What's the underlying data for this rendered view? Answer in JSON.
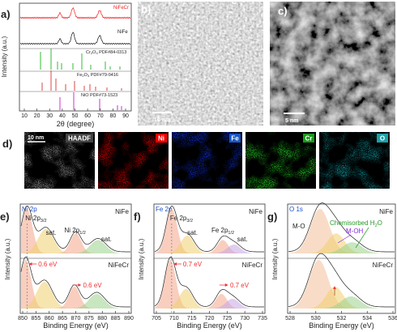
{
  "panels": {
    "a": {
      "label": "a)",
      "xlabel": "2θ (degree)",
      "ylabel": "Intensity (a.u.)",
      "xticks": [
        10,
        20,
        30,
        40,
        50,
        60,
        70,
        80,
        90
      ],
      "legend": [
        {
          "main": "NiFeCr"
        },
        {
          "main": "NiFe"
        },
        {
          "main": "Cr",
          "sub1": "2",
          "mid": "O",
          "sub2": "3",
          "rest": " PDF#84-0313"
        },
        {
          "main": "Fe",
          "sub1": "2",
          "mid": "O",
          "sub2": "3",
          "rest": " PDF#79-0416"
        },
        {
          "main": "NiO PDF#73-1523"
        }
      ]
    },
    "b": {
      "label": "b)",
      "scale": "10 nm"
    },
    "c": {
      "label": "c)",
      "scale": "5 nm"
    },
    "d": {
      "label": "d)",
      "scale": "10 nm",
      "maps": [
        "HAADF",
        "Ni",
        "Fe",
        "Cr",
        "O"
      ]
    },
    "e": {
      "label": "e)",
      "xlabel": "Binding Energy (eV)",
      "ylabel": "Intensity (a.u.)",
      "xticks": [
        850,
        855,
        860,
        865,
        870,
        875,
        880,
        885,
        890
      ],
      "title": "Ni 2p",
      "top": "NiFe",
      "bottom": "NiFeCr",
      "peak1": {
        "main": "Ni 2p",
        "sub": "3/2"
      },
      "peak2": {
        "main": "Ni 2p",
        "sub": "1/2"
      },
      "sat1": "sat.",
      "sat2": "sat.",
      "shift1": "0.6 eV",
      "shift2": "0.6 eV"
    },
    "f": {
      "label": "f)",
      "xlabel": "Binding Energy (eV)",
      "ylabel": "Intensity (a.u.)",
      "xticks": [
        705,
        710,
        715,
        720,
        725,
        730,
        735
      ],
      "title": "Fe 2p",
      "top": "NiFe",
      "bottom": "NiFeCr",
      "peak1": {
        "main": "Fe 2p",
        "sub": "3/2"
      },
      "peak2": {
        "main": "Fe 2p",
        "sub": "1/2"
      },
      "sat1": "sat.",
      "sat2": "sat.",
      "shift1": "0.7 eV",
      "shift2": "0.7 eV"
    },
    "g": {
      "label": "g)",
      "xlabel": "Binding Energy (eV)",
      "ylabel": "Intensity (a.u.)",
      "xticks": [
        528,
        530,
        532,
        534,
        536
      ],
      "title": "O 1s",
      "top": "NiFe",
      "bottom": "NiFeCr",
      "mo": "M-O",
      "moh": "M-OH",
      "water": {
        "main": "Chemisorbed H",
        "sub": "2",
        "rest": "O"
      }
    }
  }
}
